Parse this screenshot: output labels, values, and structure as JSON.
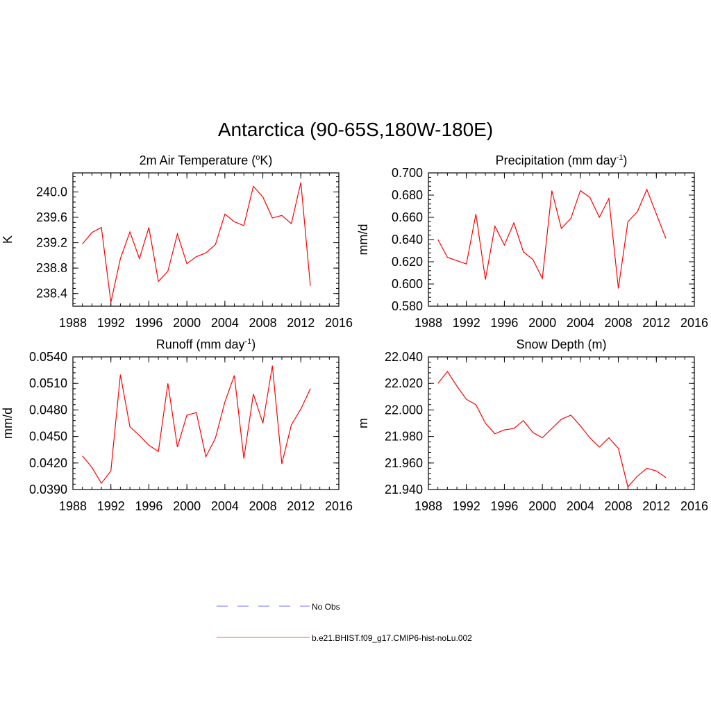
{
  "title": "Antarctica (90-65S,180W-180E)",
  "chart_data": [
    {
      "type": "line",
      "title": "2m Air Temperature (",
      "title_sup": "o",
      "title_tail": "K)",
      "ylabel": "K",
      "xlim": [
        1988,
        2016
      ],
      "ylim": [
        238.2,
        240.3
      ],
      "xticks": [
        "1988",
        "1992",
        "1996",
        "2000",
        "2004",
        "2008",
        "2012",
        "2016"
      ],
      "yticks": [
        "238.4",
        "238.8",
        "239.2",
        "239.6",
        "240.0"
      ],
      "series": [
        {
          "color": "#ff0000",
          "x": [
            1989,
            1990,
            1991,
            1992,
            1993,
            1994,
            1995,
            1996,
            1997,
            1998,
            1999,
            2000,
            2001,
            2002,
            2003,
            2004,
            2005,
            2006,
            2007,
            2008,
            2009,
            2010,
            2011,
            2012,
            2013
          ],
          "y": [
            239.18,
            239.36,
            239.44,
            238.26,
            238.95,
            239.37,
            238.95,
            239.44,
            238.59,
            238.75,
            239.34,
            238.87,
            238.98,
            239.04,
            239.17,
            239.65,
            239.53,
            239.47,
            240.09,
            239.92,
            239.59,
            239.63,
            239.5,
            240.15,
            238.52
          ]
        }
      ]
    },
    {
      "type": "line",
      "title": "Precipitation (mm day",
      "title_sup": "-1",
      "title_tail": ")",
      "ylabel": "mm/d",
      "xlim": [
        1988,
        2016
      ],
      "ylim": [
        0.58,
        0.7
      ],
      "xticks": [
        "1988",
        "1992",
        "1996",
        "2000",
        "2004",
        "2008",
        "2012",
        "2016"
      ],
      "yticks": [
        "0.580",
        "0.600",
        "0.620",
        "0.640",
        "0.660",
        "0.680",
        "0.700"
      ],
      "series": [
        {
          "color": "#ff0000",
          "x": [
            1989,
            1990,
            1991,
            1992,
            1993,
            1994,
            1995,
            1996,
            1997,
            1998,
            1999,
            2000,
            2001,
            2002,
            2003,
            2004,
            2005,
            2006,
            2007,
            2008,
            2009,
            2010,
            2011,
            2012,
            2013
          ],
          "y": [
            0.64,
            0.624,
            0.621,
            0.618,
            0.663,
            0.604,
            0.652,
            0.635,
            0.655,
            0.629,
            0.622,
            0.605,
            0.684,
            0.65,
            0.659,
            0.684,
            0.678,
            0.66,
            0.677,
            0.596,
            0.656,
            0.665,
            0.685,
            0.663,
            0.641
          ]
        }
      ]
    },
    {
      "type": "line",
      "title": "Runoff (mm day",
      "title_sup": "-1",
      "title_tail": ")",
      "ylabel": "mm/d",
      "xlim": [
        1988,
        2016
      ],
      "ylim": [
        0.039,
        0.054
      ],
      "xticks": [
        "1988",
        "1992",
        "1996",
        "2000",
        "2004",
        "2008",
        "2012",
        "2016"
      ],
      "yticks": [
        "0.0390",
        "0.0420",
        "0.0450",
        "0.0480",
        "0.0510",
        "0.0540"
      ],
      "series": [
        {
          "color": "#ff0000",
          "x": [
            1989,
            1990,
            1991,
            1992,
            1993,
            1994,
            1995,
            1996,
            1997,
            1998,
            1999,
            2000,
            2001,
            2002,
            2003,
            2004,
            2005,
            2006,
            2007,
            2008,
            2009,
            2010,
            2011,
            2012,
            2013
          ],
          "y": [
            0.0428,
            0.0415,
            0.0397,
            0.0411,
            0.052,
            0.0461,
            0.0451,
            0.044,
            0.0433,
            0.051,
            0.0438,
            0.0474,
            0.0477,
            0.0427,
            0.0448,
            0.0489,
            0.0519,
            0.0425,
            0.0498,
            0.0465,
            0.053,
            0.0419,
            0.0463,
            0.0481,
            0.0504
          ]
        }
      ]
    },
    {
      "type": "line",
      "title": "Snow Depth (m)",
      "title_sup": "",
      "title_tail": "",
      "ylabel": "m",
      "xlim": [
        1988,
        2016
      ],
      "ylim": [
        21.94,
        22.04
      ],
      "xticks": [
        "1988",
        "1992",
        "1996",
        "2000",
        "2004",
        "2008",
        "2012",
        "2016"
      ],
      "yticks": [
        "21.940",
        "21.960",
        "21.980",
        "22.000",
        "22.020",
        "22.040"
      ],
      "series": [
        {
          "color": "#ff0000",
          "x": [
            1989,
            1990,
            1991,
            1992,
            1993,
            1994,
            1995,
            1996,
            1997,
            1998,
            1999,
            2000,
            2001,
            2002,
            2003,
            2004,
            2005,
            2006,
            2007,
            2008,
            2009,
            2010,
            2011,
            2012,
            2013
          ],
          "y": [
            22.02,
            22.029,
            22.018,
            22.008,
            22.004,
            21.99,
            21.982,
            21.985,
            21.986,
            21.992,
            21.983,
            21.979,
            21.986,
            21.993,
            21.996,
            21.988,
            21.979,
            21.972,
            21.979,
            21.971,
            21.942,
            21.95,
            21.956,
            21.954,
            21.949
          ]
        }
      ]
    }
  ],
  "legend": [
    {
      "label": "No Obs",
      "color": "#a0a0ff",
      "style": "dashed"
    },
    {
      "label": "b.e21.BHIST.f09_g17.CMIP6-hist-noLu.002",
      "color": "#ff9090",
      "style": "solid"
    }
  ]
}
